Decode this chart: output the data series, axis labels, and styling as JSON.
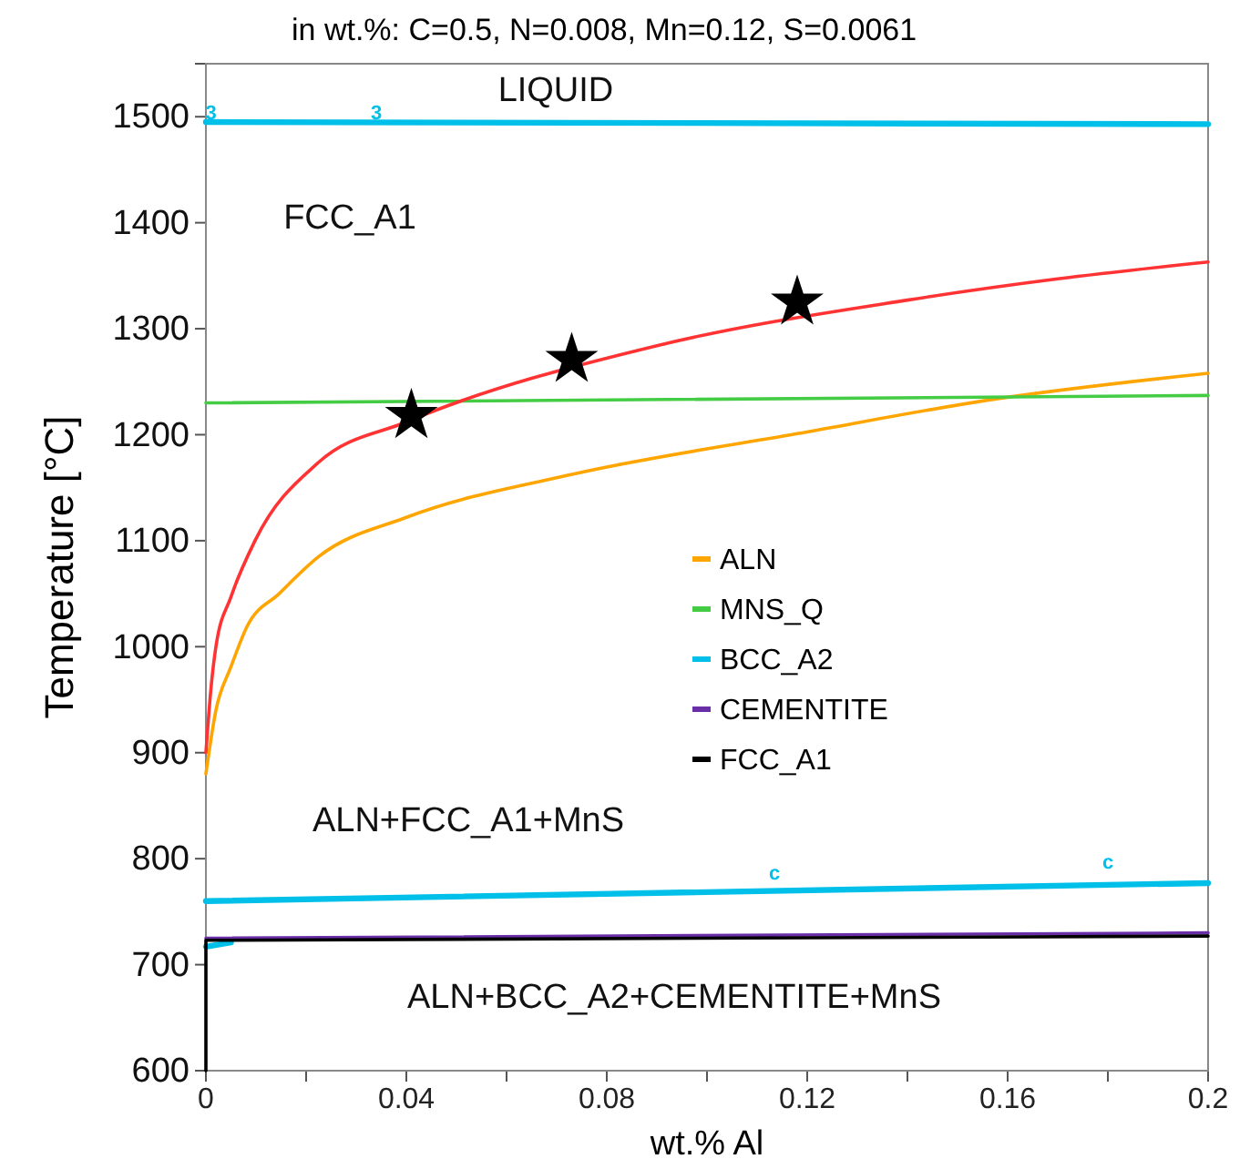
{
  "chart_data": {
    "type": "line",
    "title": "in wt.%: C=0.5, N=0.008, Mn=0.12, S=0.0061",
    "xlabel": "wt.% Al",
    "ylabel": "Temperature [°C]",
    "xlim": [
      0,
      0.2
    ],
    "xticks": [
      0,
      {
        "value": 0.02,
        "label": null
      },
      0.04,
      {
        "value": 0.06,
        "label": null
      },
      0.08,
      {
        "value": 0.1,
        "label": null
      },
      0.12,
      {
        "value": 0.14,
        "label": null
      },
      0.16,
      {
        "value": 0.18,
        "label": null
      },
      0.2
    ],
    "ylim": [
      600,
      1550
    ],
    "yticks": [
      600,
      700,
      800,
      900,
      1000,
      1100,
      1200,
      1300,
      1400,
      1500
    ],
    "grid": false,
    "legend": "right",
    "marker": "none",
    "line_style": "solid",
    "series": [
      {
        "name": "ALN",
        "color": "#ffa500",
        "x": [
          0,
          0.002,
          0.005,
          0.0082,
          0.0146,
          0.0225,
          0.04,
          0.0735,
          0.118,
          0.158,
          0.2
        ],
        "values": [
          880,
          940,
          981,
          1019,
          1050,
          1085,
          1122,
          1163,
          1201,
          1234,
          1258
        ]
      },
      {
        "name": "MNS_Q",
        "color": "#44cc44",
        "x": [
          0,
          0.2
        ],
        "values": [
          1230,
          1237
        ]
      },
      {
        "name": "BCC_A2",
        "color": "#00bfe8",
        "x": [
          0,
          0.2
        ],
        "values": [
          760,
          777
        ]
      },
      {
        "color": "#00bfe8",
        "x": [
          0,
          0.2
        ],
        "values": [
          1495,
          1493
        ]
      },
      {
        "color": "#00bfe8",
        "x": [
          0,
          0.005
        ],
        "values": [
          717,
          721
        ]
      },
      {
        "name": "CEMENTITE",
        "color": "#6a2fa8",
        "x": [
          0,
          0.2
        ],
        "values": [
          725,
          730
        ]
      },
      {
        "name": "FCC_A1",
        "color": "#000000",
        "x": [
          0,
          0,
          0.2
        ],
        "values": [
          600,
          723,
          727
        ]
      },
      {
        "color": "#ff3333",
        "x": [
          0,
          0.001,
          0.002,
          0.005,
          0.0098,
          0.0225,
          0.04,
          0.09,
          0.14,
          0.17,
          0.2
        ],
        "values": [
          900,
          960,
          1000,
          1047,
          1100,
          1174,
          1212,
          1284,
          1327,
          1347,
          1363
        ]
      },
      {
        "type": "scatter",
        "marker": "star",
        "color": "#000000",
        "x": [
          0.041,
          0.073,
          0.118
        ],
        "values": [
          1218,
          1271,
          1325
        ]
      }
    ],
    "annotations": [
      "LIQUID",
      "FCC_A1",
      "ALN+FCC_A1+MnS",
      "ALN+BCC_A2+CEMENTITE+MnS",
      {
        "text": "3",
        "x": 0.001,
        "y": 1503
      },
      {
        "text": "3",
        "x": 0.034,
        "y": 1503
      },
      "c",
      "c"
    ]
  }
}
